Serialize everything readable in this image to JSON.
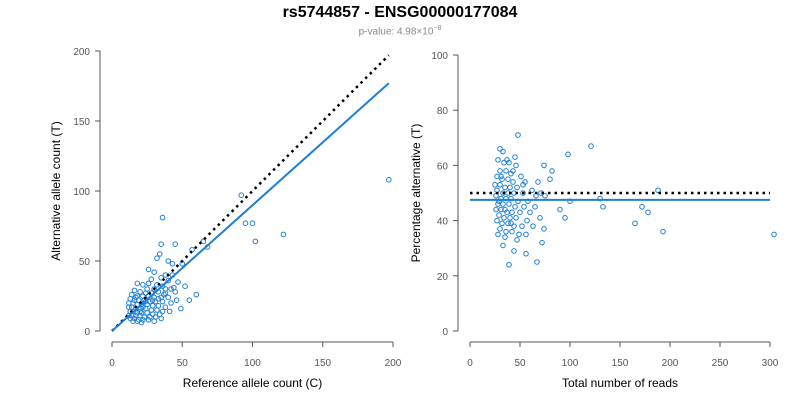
{
  "title": "rs5744857 - ENSG00000177084",
  "subtitle_prefix": "p-value: 4.98×10",
  "subtitle_exp": "−8",
  "colors": {
    "points": "#1f7fd6",
    "fit": "#1f7fd6",
    "reference": "#000000",
    "axis": "#555555"
  },
  "chart_data": [
    {
      "type": "scatter",
      "xlabel": "Reference allele count (C)",
      "ylabel": "Alternative allele count (T)",
      "xlim": [
        0,
        200
      ],
      "ylim": [
        0,
        200
      ],
      "xticks": [
        "0",
        "50",
        "100",
        "150",
        "200"
      ],
      "yticks": [
        "0",
        "50",
        "100",
        "150",
        "200"
      ],
      "reference_line": {
        "style": "dotted",
        "x": [
          0,
          197
        ],
        "y": [
          0,
          197
        ]
      },
      "fit_line": {
        "style": "solid",
        "x": [
          0,
          197
        ],
        "y": [
          0,
          177
        ]
      },
      "points": [
        [
          92,
          97
        ],
        [
          36,
          81
        ],
        [
          197,
          108
        ],
        [
          100,
          77
        ],
        [
          95,
          77
        ],
        [
          122,
          69
        ],
        [
          102,
          64
        ],
        [
          65,
          64
        ],
        [
          68,
          60
        ],
        [
          57,
          58
        ],
        [
          35,
          62
        ],
        [
          45,
          62
        ],
        [
          34,
          55
        ],
        [
          32,
          52
        ],
        [
          40,
          50
        ],
        [
          43,
          48
        ],
        [
          50,
          48
        ],
        [
          26,
          44
        ],
        [
          30,
          42
        ],
        [
          38,
          40
        ],
        [
          43,
          40
        ],
        [
          35,
          38
        ],
        [
          28,
          37
        ],
        [
          40,
          36
        ],
        [
          47,
          35
        ],
        [
          18,
          34
        ],
        [
          22,
          33
        ],
        [
          32,
          33
        ],
        [
          36,
          32
        ],
        [
          25,
          30
        ],
        [
          30,
          30
        ],
        [
          38,
          30
        ],
        [
          42,
          30
        ],
        [
          45,
          28
        ],
        [
          16,
          29
        ],
        [
          20,
          28
        ],
        [
          24,
          27
        ],
        [
          28,
          27
        ],
        [
          33,
          28
        ],
        [
          38,
          27
        ],
        [
          14,
          26
        ],
        [
          18,
          25
        ],
        [
          22,
          25
        ],
        [
          26,
          25
        ],
        [
          30,
          24
        ],
        [
          35,
          24
        ],
        [
          40,
          24
        ],
        [
          46,
          22
        ],
        [
          13,
          23
        ],
        [
          16,
          22
        ],
        [
          19,
          22
        ],
        [
          23,
          22
        ],
        [
          27,
          21
        ],
        [
          31,
          21
        ],
        [
          36,
          21
        ],
        [
          42,
          20
        ],
        [
          12,
          20
        ],
        [
          15,
          20
        ],
        [
          18,
          19
        ],
        [
          21,
          19
        ],
        [
          25,
          19
        ],
        [
          29,
          18
        ],
        [
          33,
          18
        ],
        [
          38,
          17
        ],
        [
          12,
          17
        ],
        [
          14,
          17
        ],
        [
          17,
          16
        ],
        [
          20,
          16
        ],
        [
          24,
          16
        ],
        [
          28,
          15
        ],
        [
          32,
          15
        ],
        [
          36,
          14
        ],
        [
          41,
          14
        ],
        [
          13,
          14
        ],
        [
          15,
          14
        ],
        [
          18,
          13
        ],
        [
          21,
          13
        ],
        [
          25,
          13
        ],
        [
          29,
          12
        ],
        [
          34,
          12
        ],
        [
          12,
          11
        ],
        [
          14,
          11
        ],
        [
          17,
          11
        ],
        [
          20,
          11
        ],
        [
          23,
          10
        ],
        [
          27,
          10
        ],
        [
          31,
          10
        ],
        [
          35,
          9
        ],
        [
          13,
          9
        ],
        [
          16,
          9
        ],
        [
          19,
          8
        ],
        [
          22,
          8
        ],
        [
          26,
          8
        ],
        [
          30,
          7
        ],
        [
          15,
          7
        ],
        [
          18,
          7
        ],
        [
          21,
          6
        ],
        [
          49,
          16
        ],
        [
          55,
          22
        ],
        [
          60,
          26
        ],
        [
          52,
          32
        ],
        [
          24,
          21
        ],
        [
          22,
          17
        ],
        [
          20,
          14
        ],
        [
          17,
          24
        ],
        [
          26,
          34
        ],
        [
          29,
          22
        ],
        [
          33,
          23
        ],
        [
          37,
          26
        ],
        [
          44,
          31
        ]
      ]
    },
    {
      "type": "scatter",
      "xlabel": "Total number of reads",
      "ylabel": "Percentage alternative (T)",
      "xlim": [
        0,
        300
      ],
      "ylim": [
        0,
        100
      ],
      "xticks": [
        "0",
        "50",
        "100",
        "150",
        "200",
        "250",
        "300"
      ],
      "yticks": [
        "0",
        "20",
        "40",
        "60",
        "80",
        "100"
      ],
      "reference_line": {
        "style": "dotted",
        "y": 50,
        "x": [
          0,
          300
        ]
      },
      "fit_line": {
        "style": "solid",
        "y": 47.5,
        "x": [
          0,
          300
        ]
      },
      "points": [
        [
          48,
          71
        ],
        [
          121,
          67
        ],
        [
          30,
          66
        ],
        [
          33,
          65
        ],
        [
          98,
          64
        ],
        [
          45,
          63
        ],
        [
          28,
          62
        ],
        [
          34,
          61
        ],
        [
          39,
          61
        ],
        [
          46,
          60
        ],
        [
          74,
          60
        ],
        [
          82,
          58
        ],
        [
          30,
          58
        ],
        [
          36,
          58
        ],
        [
          41,
          57
        ],
        [
          51,
          56
        ],
        [
          27,
          56
        ],
        [
          32,
          55
        ],
        [
          38,
          55
        ],
        [
          43,
          54
        ],
        [
          55,
          54
        ],
        [
          68,
          54
        ],
        [
          25,
          53
        ],
        [
          30,
          53
        ],
        [
          35,
          52
        ],
        [
          40,
          52
        ],
        [
          47,
          52
        ],
        [
          62,
          51
        ],
        [
          80,
          55
        ],
        [
          188,
          51
        ],
        [
          27,
          51
        ],
        [
          33,
          50
        ],
        [
          38,
          50
        ],
        [
          44,
          50
        ],
        [
          53,
          50
        ],
        [
          71,
          50
        ],
        [
          26,
          49
        ],
        [
          31,
          48
        ],
        [
          36,
          48
        ],
        [
          41,
          48
        ],
        [
          48,
          47
        ],
        [
          58,
          47
        ],
        [
          75,
          49
        ],
        [
          100,
          47
        ],
        [
          130,
          48
        ],
        [
          28,
          46
        ],
        [
          33,
          46
        ],
        [
          39,
          46
        ],
        [
          45,
          45
        ],
        [
          54,
          45
        ],
        [
          65,
          45
        ],
        [
          133,
          45
        ],
        [
          172,
          45
        ],
        [
          26,
          44
        ],
        [
          31,
          44
        ],
        [
          37,
          43
        ],
        [
          42,
          43
        ],
        [
          50,
          43
        ],
        [
          60,
          43
        ],
        [
          90,
          44
        ],
        [
          178,
          43
        ],
        [
          29,
          42
        ],
        [
          34,
          41
        ],
        [
          40,
          41
        ],
        [
          46,
          41
        ],
        [
          57,
          40
        ],
        [
          70,
          41
        ],
        [
          95,
          41
        ],
        [
          27,
          40
        ],
        [
          32,
          39
        ],
        [
          38,
          39
        ],
        [
          44,
          38
        ],
        [
          52,
          38
        ],
        [
          63,
          38
        ],
        [
          165,
          39
        ],
        [
          30,
          37
        ],
        [
          36,
          36
        ],
        [
          42,
          36
        ],
        [
          49,
          35
        ],
        [
          56,
          35
        ],
        [
          74,
          37
        ],
        [
          193,
          36
        ],
        [
          304,
          35
        ],
        [
          28,
          35
        ],
        [
          35,
          34
        ],
        [
          47,
          33
        ],
        [
          72,
          32
        ],
        [
          33,
          31
        ],
        [
          44,
          29
        ],
        [
          56,
          28
        ],
        [
          67,
          25
        ],
        [
          39,
          24
        ],
        [
          31,
          56
        ],
        [
          37,
          62
        ],
        [
          43,
          58
        ],
        [
          53,
          53
        ],
        [
          66,
          49
        ],
        [
          29,
          47
        ],
        [
          35,
          44
        ],
        [
          41,
          39
        ]
      ]
    }
  ]
}
